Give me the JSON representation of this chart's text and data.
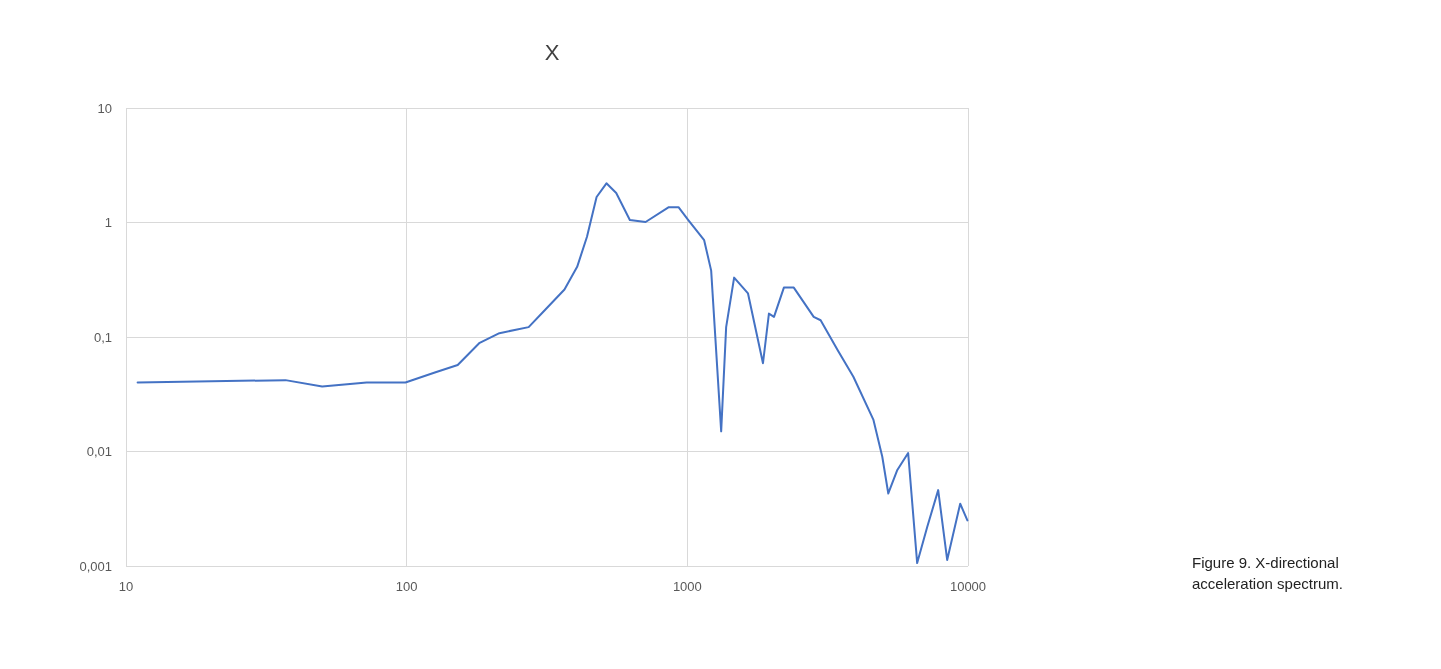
{
  "chart_data": {
    "type": "line",
    "title": "X",
    "x": [
      11,
      37,
      50,
      72,
      99,
      126,
      152,
      182,
      214,
      272,
      311,
      365,
      405,
      439,
      475,
      515,
      558,
      624,
      710,
      859,
      930,
      1008,
      1148,
      1216,
      1320,
      1375,
      1468,
      1645,
      1860,
      1953,
      2036,
      2208,
      2395,
      2820,
      2985,
      3430,
      3905,
      4600,
      4950,
      5200,
      5600,
      6120,
      6590,
      7160,
      7830,
      8430,
      9380,
      9950
    ],
    "series": [
      {
        "color": "#4472c4",
        "values": [
          0.04,
          0.042,
          0.037,
          0.04,
          0.04,
          0.049,
          0.057,
          0.089,
          0.108,
          0.122,
          0.172,
          0.26,
          0.41,
          0.75,
          1.67,
          2.2,
          1.81,
          1.05,
          1.01,
          1.36,
          1.36,
          1.05,
          0.7,
          0.38,
          0.015,
          0.122,
          0.33,
          0.24,
          0.059,
          0.16,
          0.15,
          0.27,
          0.27,
          0.15,
          0.14,
          0.077,
          0.045,
          0.019,
          0.009,
          0.0043,
          0.0069,
          0.0097,
          0.00106,
          0.0022,
          0.0046,
          0.00113,
          0.0035,
          0.0025
        ]
      }
    ],
    "log": "xy",
    "xlim": [
      10,
      10000
    ],
    "xticks": [
      10,
      100,
      1000,
      10000
    ],
    "ylim": [
      0.001,
      10
    ],
    "yticks": [
      {
        "value": 0.001,
        "label": "0,001"
      },
      {
        "value": 0.01,
        "label": "0,01"
      },
      {
        "value": 0.1,
        "label": "0,1"
      },
      1,
      10
    ],
    "grid": true,
    "marker": "none",
    "line_style": "solid",
    "annotations": [
      "Figure 9. X-directional acceleration spectrum."
    ]
  }
}
